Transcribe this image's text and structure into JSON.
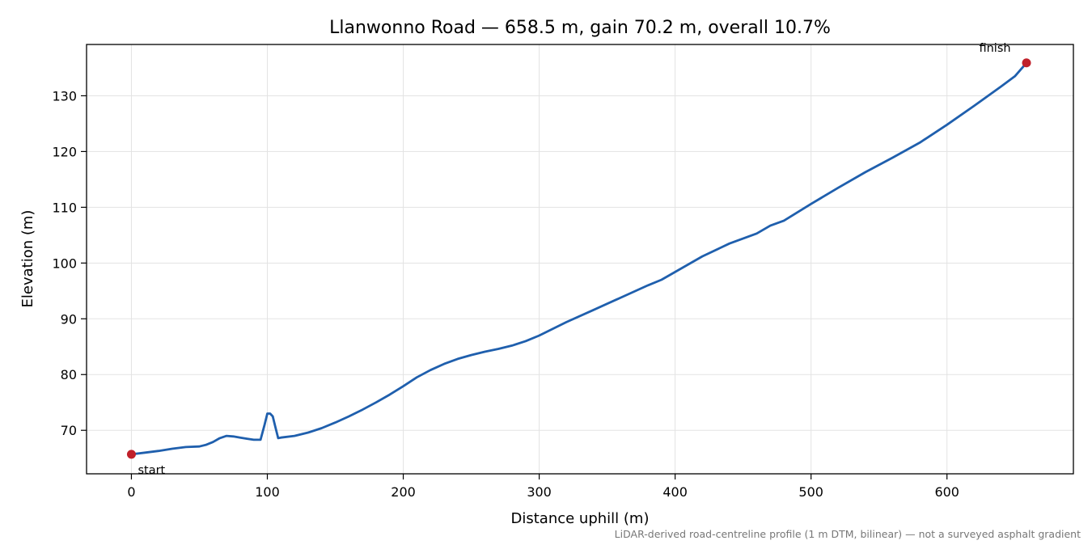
{
  "chart_data": {
    "type": "line",
    "title": "Llanwonno Road — 658.5 m, gain 70.2 m, overall 10.7%",
    "xlabel": "Distance uphill (m)",
    "ylabel": "Elevation (m)",
    "xlim": [
      -33,
      693
    ],
    "ylim": [
      62.2,
      139.2
    ],
    "xticks": [
      0,
      100,
      200,
      300,
      400,
      500,
      600
    ],
    "yticks": [
      70,
      80,
      90,
      100,
      110,
      120,
      130
    ],
    "grid": true,
    "line_color": "#1f5fad",
    "marker_color": "#c0202a",
    "series": [
      {
        "x": [
          0,
          10,
          20,
          30,
          40,
          50,
          55,
          60,
          65,
          70,
          75,
          80,
          85,
          90,
          95,
          98,
          100,
          102,
          104,
          106,
          108,
          110,
          120,
          130,
          140,
          150,
          160,
          170,
          180,
          190,
          200,
          210,
          220,
          230,
          240,
          250,
          260,
          270,
          280,
          290,
          300,
          320,
          340,
          360,
          380,
          390,
          400,
          420,
          440,
          460,
          470,
          480,
          500,
          520,
          540,
          560,
          580,
          600,
          620,
          640,
          650,
          658.5
        ],
        "y": [
          65.7,
          66.0,
          66.3,
          66.7,
          67.0,
          67.1,
          67.4,
          67.9,
          68.6,
          69.0,
          68.9,
          68.7,
          68.5,
          68.3,
          68.3,
          71.0,
          73.0,
          73.0,
          72.5,
          70.5,
          68.6,
          68.7,
          69.0,
          69.6,
          70.4,
          71.4,
          72.5,
          73.7,
          75.0,
          76.4,
          77.9,
          79.5,
          80.8,
          81.9,
          82.8,
          83.5,
          84.1,
          84.6,
          85.2,
          86.0,
          87.0,
          89.4,
          91.6,
          93.8,
          96.0,
          97.0,
          98.4,
          101.2,
          103.5,
          105.3,
          106.7,
          107.6,
          110.6,
          113.5,
          116.3,
          118.9,
          121.6,
          124.8,
          128.2,
          131.7,
          133.5,
          135.9
        ]
      }
    ],
    "annotations": [
      {
        "text": "start",
        "x": 0,
        "y": 65.7
      },
      {
        "text": "finish",
        "x": 658.5,
        "y": 135.9
      }
    ],
    "footnote": "LiDAR-derived road-centreline profile (1 m DTM, bilinear) — not a surveyed asphalt gradient"
  }
}
